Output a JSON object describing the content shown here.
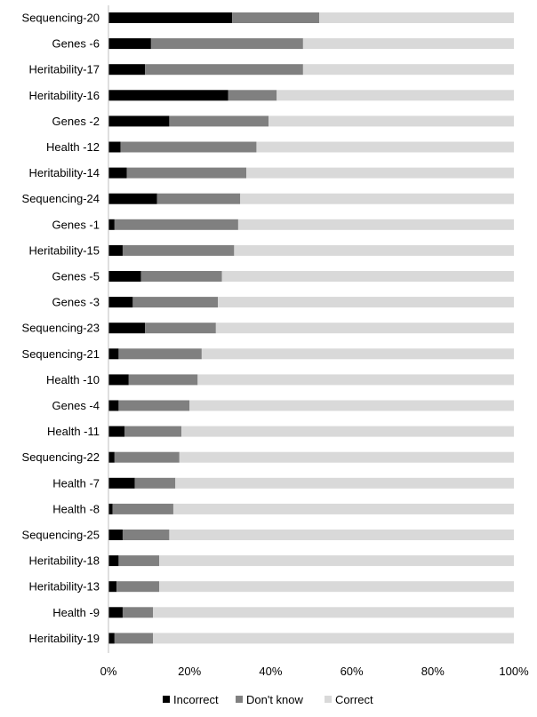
{
  "chart_data": {
    "type": "bar",
    "orientation": "horizontal",
    "stacked": true,
    "percent_stacked": true,
    "categories": [
      "Sequencing-20",
      "Genes -6",
      "Heritability-17",
      "Heritability-16",
      "Genes -2",
      "Health -12",
      "Heritability-14",
      "Sequencing-24",
      "Genes -1",
      "Heritability-15",
      "Genes -5",
      "Genes -3",
      "Sequencing-23",
      "Sequencing-21",
      "Health -10",
      "Genes -4",
      "Health -11",
      "Sequencing-22",
      "Health -7",
      "Health -8",
      "Sequencing-25",
      "Heritability-18",
      "Heritability-13",
      "Health -9",
      "Heritability-19"
    ],
    "series": [
      {
        "name": "Incorrect",
        "color": "#000000",
        "values": [
          30.5,
          10.5,
          9,
          29.5,
          15,
          3,
          4.5,
          12,
          1.5,
          3.5,
          8,
          6,
          9,
          2.5,
          5,
          2.5,
          4,
          1.5,
          6.5,
          1,
          3.5,
          2.5,
          2,
          3.5,
          1.5
        ]
      },
      {
        "name": "Don't know",
        "color": "#808080",
        "values": [
          21.5,
          37.5,
          39,
          12,
          24.5,
          33.5,
          29.5,
          20.5,
          30.5,
          27.5,
          20,
          21,
          17.5,
          20.5,
          17,
          17.5,
          14,
          16,
          10,
          15,
          11.5,
          10,
          10.5,
          7.5,
          9.5
        ]
      },
      {
        "name": "Correct",
        "color": "#d9d9d9",
        "values": [
          48,
          52,
          52,
          58.5,
          60.5,
          63.5,
          66,
          67.5,
          68,
          69,
          72,
          73,
          73.5,
          77,
          78,
          80,
          82,
          82.5,
          83.5,
          84,
          85,
          87.5,
          87.5,
          89,
          89
        ]
      }
    ],
    "x_axis": {
      "min": 0,
      "max": 100,
      "ticks": [
        "0%",
        "20%",
        "40%",
        "60%",
        "80%",
        "100%"
      ]
    },
    "title": "",
    "xlabel": "",
    "ylabel": "",
    "grid": false,
    "legend": {
      "placement": "bottom",
      "entries": [
        "Incorrect",
        "Don't know",
        "Correct"
      ]
    }
  }
}
